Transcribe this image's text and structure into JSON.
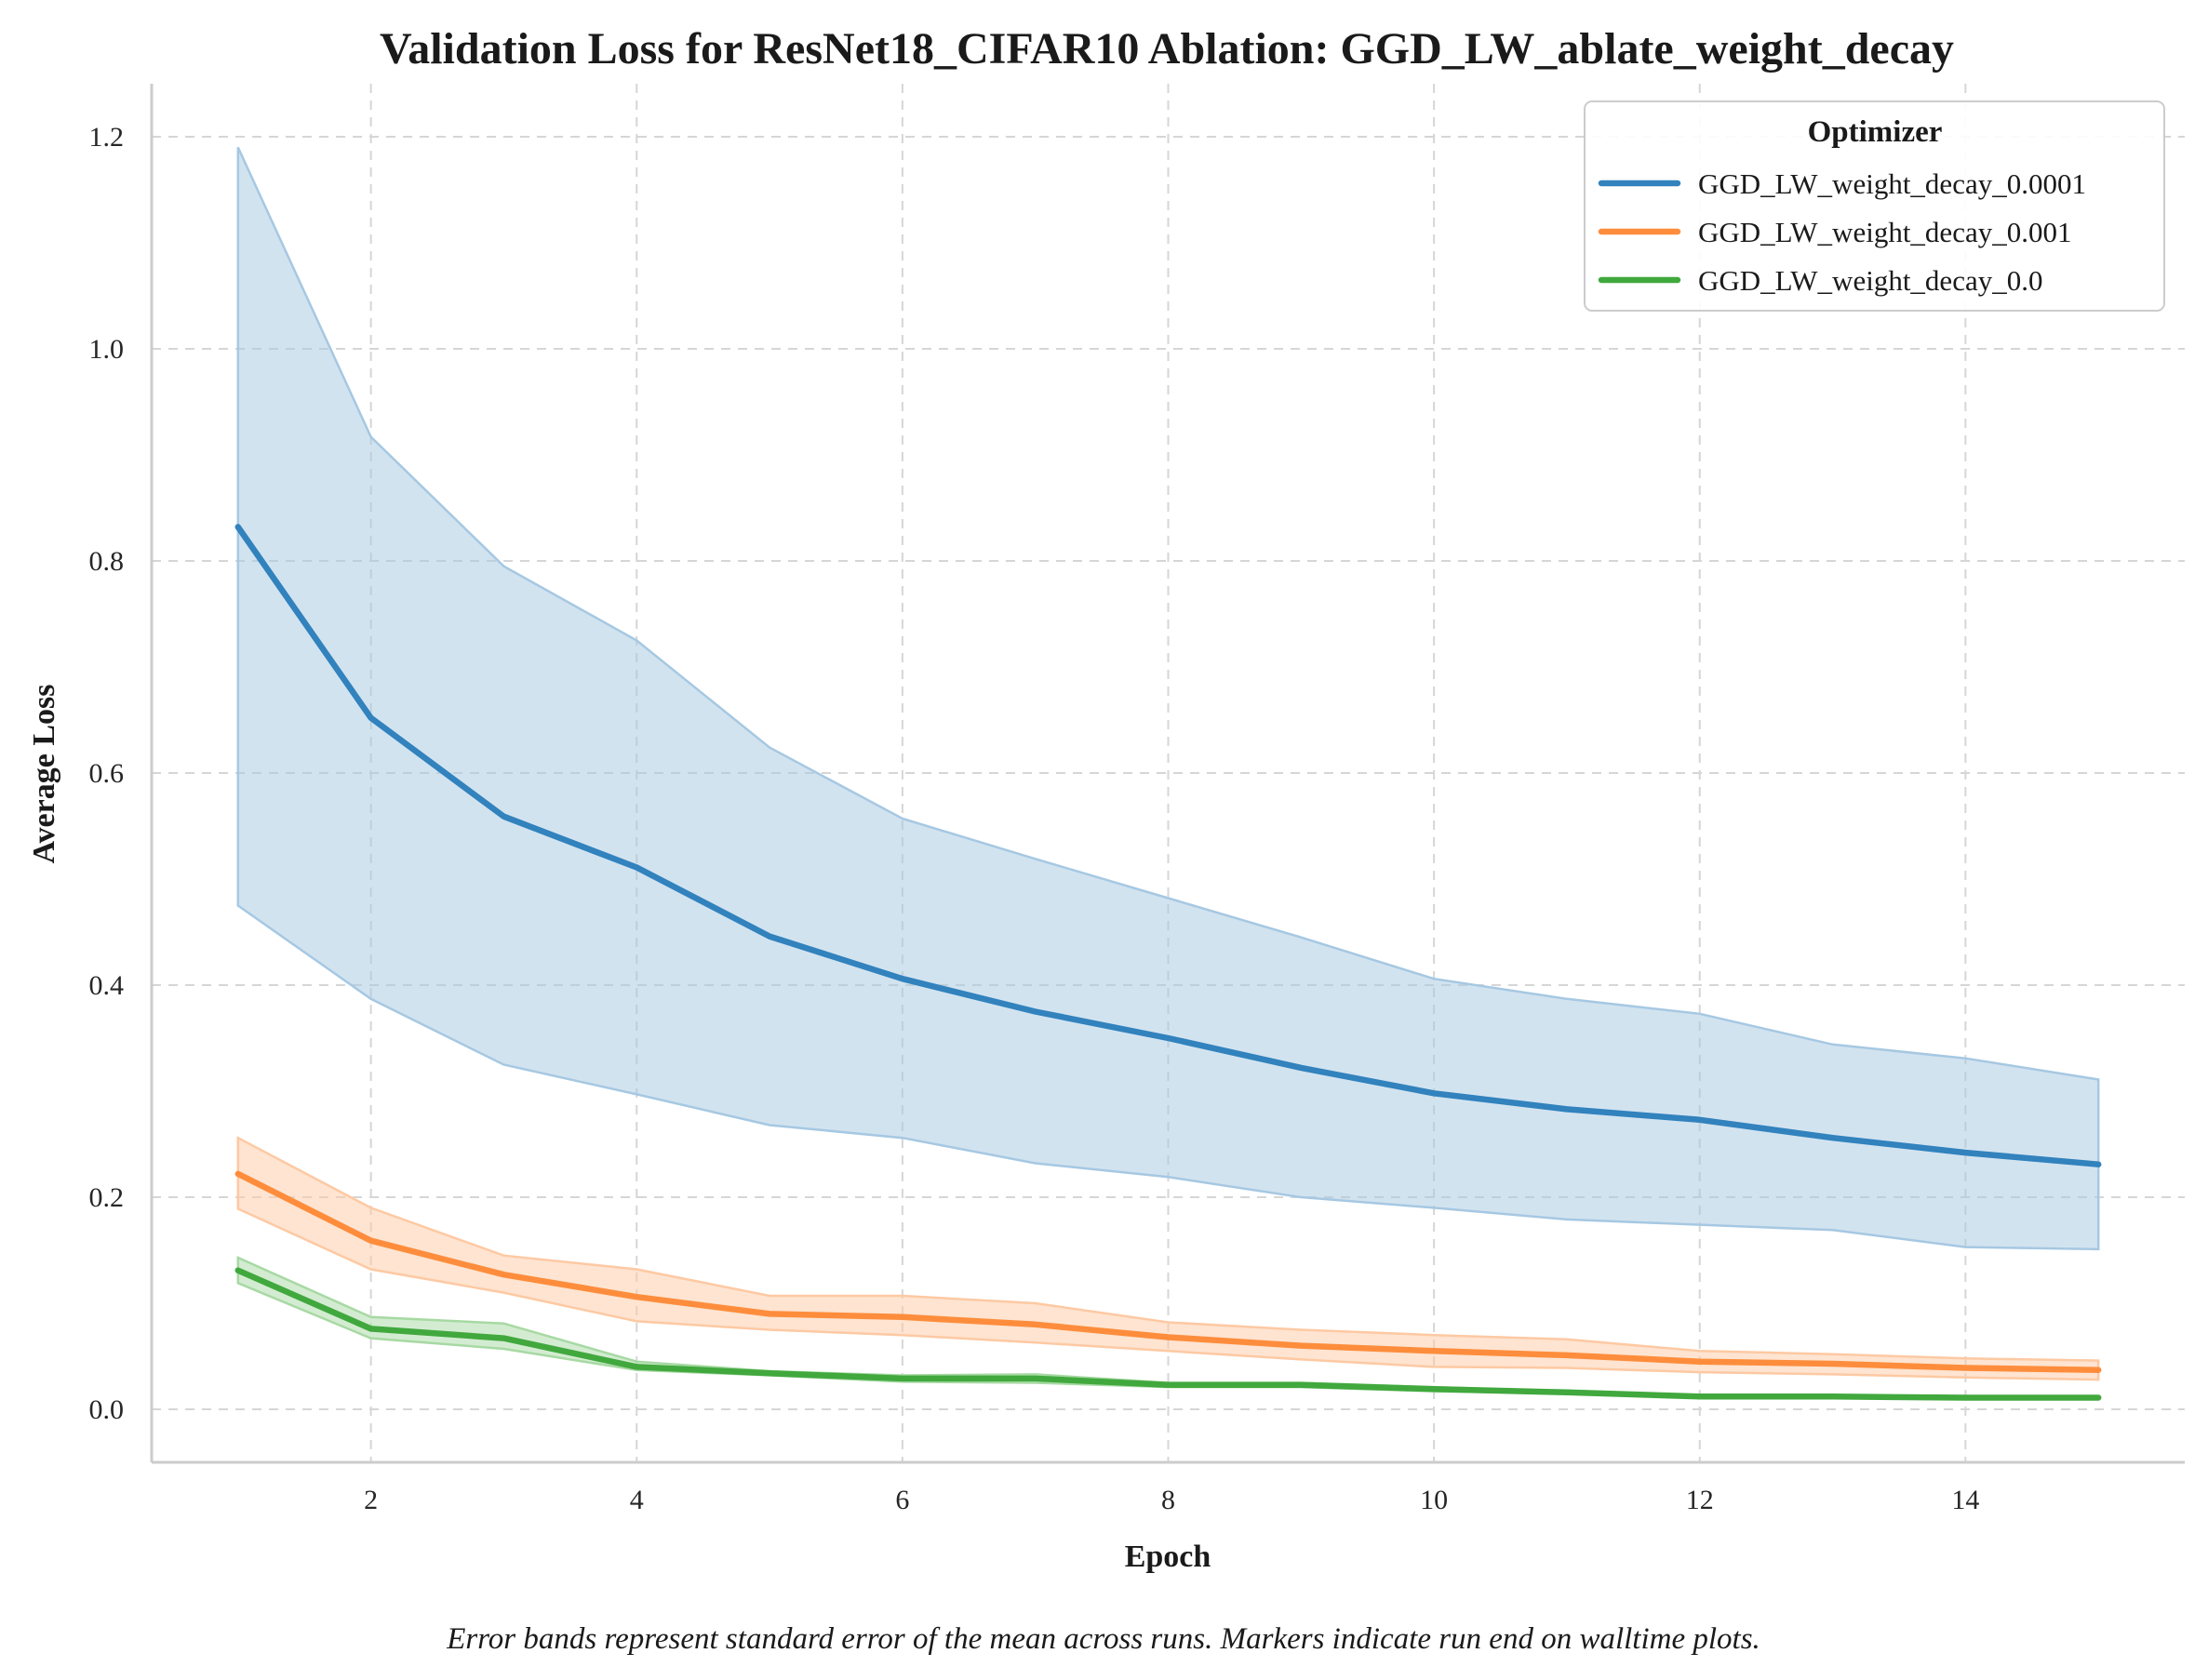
{
  "chart_data": {
    "type": "line",
    "title": "Validation Loss for ResNet18_CIFAR10 Ablation: GGD_LW_ablate_weight_decay",
    "xlabel": "Epoch",
    "ylabel": "Average Loss",
    "xlim": [
      0.35,
      15.65
    ],
    "ylim": [
      -0.05,
      1.25
    ],
    "xticks": [
      2,
      4,
      6,
      8,
      10,
      12,
      14
    ],
    "yticks": [
      0.0,
      0.2,
      0.4,
      0.6,
      0.8,
      1.0,
      1.2
    ],
    "ytick_labels": [
      "0.0",
      "0.2",
      "0.4",
      "0.6",
      "0.8",
      "1.0",
      "1.2"
    ],
    "grid": true,
    "legend_title": "Optimizer",
    "legend_position": "top-right",
    "caption": "Error bands represent standard error of the mean across runs. Markers indicate run end on walltime plots.",
    "x": [
      1,
      2,
      3,
      4,
      5,
      6,
      7,
      8,
      9,
      10,
      11,
      12,
      13,
      14,
      15
    ],
    "series": [
      {
        "name": "GGD_LW_weight_decay_0.0001",
        "color": "#3182bd",
        "band_color": "#a6c8e2",
        "values": [
          0.832,
          0.652,
          0.559,
          0.511,
          0.446,
          0.406,
          0.375,
          0.35,
          0.322,
          0.298,
          0.283,
          0.273,
          0.256,
          0.242,
          0.231
        ],
        "lower": [
          0.475,
          0.387,
          0.325,
          0.297,
          0.268,
          0.256,
          0.232,
          0.219,
          0.2,
          0.19,
          0.179,
          0.174,
          0.169,
          0.153,
          0.151
        ],
        "upper": [
          1.19,
          0.917,
          0.795,
          0.725,
          0.624,
          0.557,
          0.519,
          0.482,
          0.445,
          0.406,
          0.387,
          0.373,
          0.344,
          0.331,
          0.311
        ]
      },
      {
        "name": "GGD_LW_weight_decay_0.001",
        "color": "#fd8d3c",
        "band_color": "#fdc9a3",
        "values": [
          0.222,
          0.159,
          0.127,
          0.106,
          0.09,
          0.087,
          0.08,
          0.068,
          0.06,
          0.055,
          0.051,
          0.045,
          0.043,
          0.039,
          0.037
        ],
        "lower": [
          0.189,
          0.132,
          0.11,
          0.083,
          0.075,
          0.07,
          0.063,
          0.055,
          0.047,
          0.04,
          0.039,
          0.035,
          0.033,
          0.03,
          0.028
        ],
        "upper": [
          0.256,
          0.19,
          0.145,
          0.132,
          0.107,
          0.107,
          0.1,
          0.082,
          0.075,
          0.07,
          0.066,
          0.055,
          0.052,
          0.048,
          0.046
        ]
      },
      {
        "name": "GGD_LW_weight_decay_0.0",
        "color": "#41a83e",
        "band_color": "#a7d9a3",
        "values": [
          0.131,
          0.076,
          0.067,
          0.04,
          0.034,
          0.029,
          0.029,
          0.023,
          0.023,
          0.019,
          0.016,
          0.012,
          0.012,
          0.011,
          0.011
        ],
        "lower": [
          0.119,
          0.067,
          0.057,
          0.037,
          0.032,
          0.026,
          0.025,
          0.021,
          0.021,
          0.017,
          0.015,
          0.011,
          0.011,
          0.01,
          0.01
        ],
        "upper": [
          0.143,
          0.087,
          0.081,
          0.045,
          0.036,
          0.032,
          0.033,
          0.025,
          0.025,
          0.021,
          0.017,
          0.013,
          0.013,
          0.012,
          0.012
        ]
      }
    ]
  }
}
